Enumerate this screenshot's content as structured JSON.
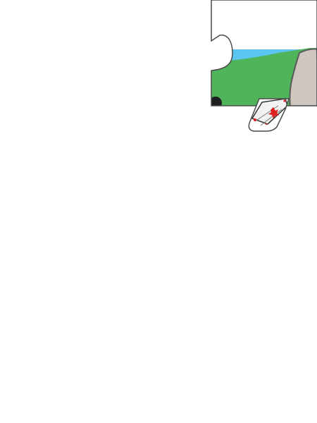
{
  "puzzle": {
    "pieces": [
      {
        "name": "puzzle-piece-road",
        "scene": "sky-grass-road"
      },
      {
        "name": "puzzle-piece-fragment",
        "scene": "white-object-with-red-marks"
      }
    ],
    "colors": {
      "sky": "#5bc6f2",
      "grass": "#4fb45a",
      "road": "#cfc7bf",
      "outline": "#3a3a3a",
      "accent_red": "#e02020"
    }
  }
}
